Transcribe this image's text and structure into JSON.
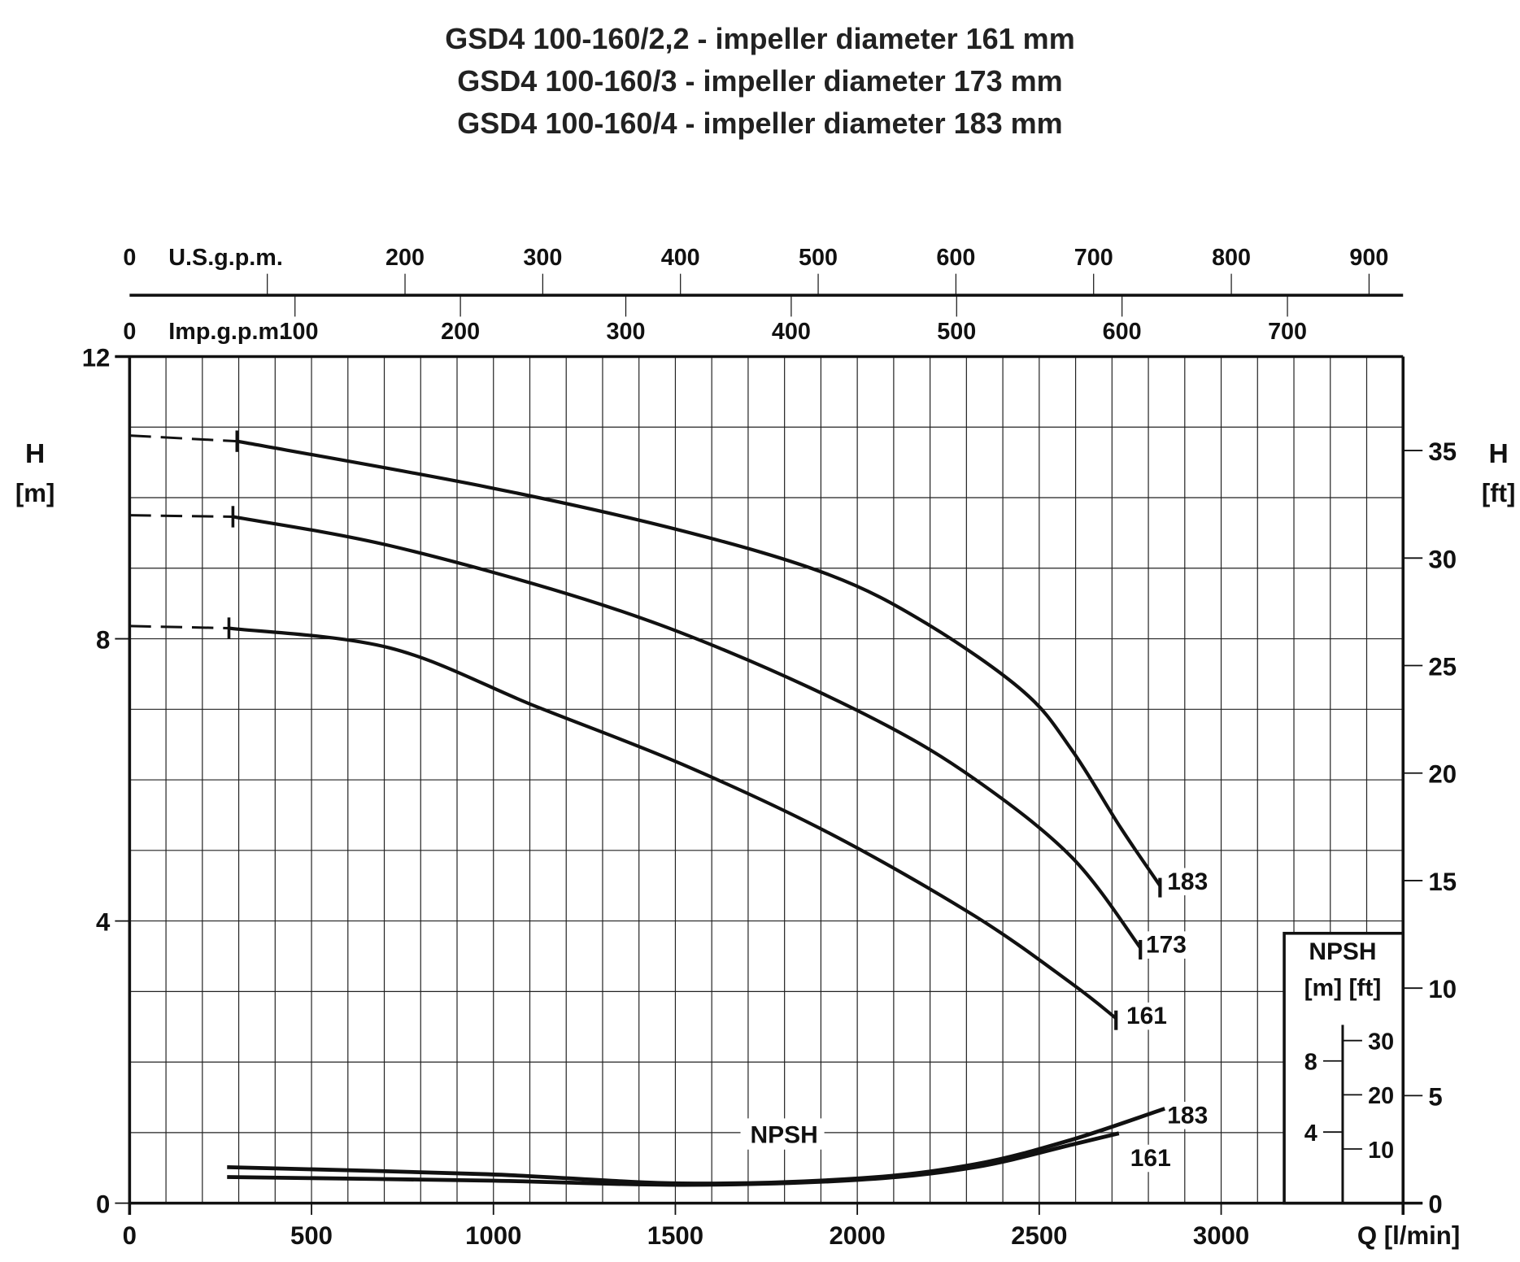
{
  "chart_data": {
    "type": "line",
    "title": [
      "GSD4 100-160/2,2 - impeller diameter 161 mm",
      "GSD4 100-160/3 - impeller diameter 173 mm",
      "GSD4 100-160/4 - impeller diameter 183 mm"
    ],
    "xlabel": "Q [l/min]",
    "xlim": [
      0,
      3500
    ],
    "xticks": [
      0,
      500,
      1000,
      1500,
      2000,
      2500,
      3000
    ],
    "ylabel_left": {
      "symbol": "H",
      "unit": "[m]"
    },
    "ylim": [
      0,
      12
    ],
    "yticks": [
      0,
      4,
      8,
      12
    ],
    "ylabel_right": {
      "symbol": "H",
      "unit": "[ft]"
    },
    "yticks_right_ft": [
      0,
      5,
      10,
      15,
      20,
      25,
      30,
      35
    ],
    "grid": true,
    "top_axes": [
      {
        "label": "U.S.g.p.m.",
        "lpm_per_unit": 3.785,
        "ticks": [
          0,
          100,
          200,
          300,
          400,
          500,
          600,
          700,
          800,
          900
        ]
      },
      {
        "label": "Imp.g.p.m.",
        "lpm_per_unit": 4.546,
        "ticks": [
          0,
          100,
          200,
          300,
          400,
          500,
          600,
          700
        ]
      }
    ],
    "series": [
      {
        "name": "183",
        "kind": "H",
        "dashed_to": 295,
        "x": [
          0,
          295,
          983,
          1519,
          1921,
          2189,
          2457,
          2590,
          2724,
          2832
        ],
        "y": [
          10.88,
          10.8,
          10.15,
          9.53,
          8.91,
          8.22,
          7.25,
          6.42,
          5.32,
          4.5
        ]
      },
      {
        "name": "173",
        "kind": "H",
        "dashed_to": 284,
        "x": [
          0,
          284,
          715,
          1251,
          1653,
          2055,
          2323,
          2590,
          2778
        ],
        "y": [
          9.75,
          9.73,
          9.32,
          8.56,
          7.8,
          6.84,
          6.01,
          4.9,
          3.62
        ]
      },
      {
        "name": "161",
        "kind": "H",
        "dashed_to": 273,
        "x": [
          0,
          273,
          715,
          1117,
          1519,
          1921,
          2323,
          2590,
          2711
        ],
        "y": [
          8.18,
          8.15,
          7.87,
          7.04,
          6.22,
          5.25,
          4.07,
          3.11,
          2.62
        ]
      },
      {
        "name": "183",
        "kind": "NPSH",
        "x": [
          268,
          983,
          1519,
          2001,
          2323,
          2590,
          2845
        ],
        "y": [
          0.51,
          0.41,
          0.28,
          0.35,
          0.55,
          0.9,
          1.34
        ]
      },
      {
        "name": "161",
        "kind": "NPSH",
        "x": [
          268,
          983,
          1519,
          2001,
          2323,
          2590,
          2719
        ],
        "y": [
          0.37,
          0.32,
          0.26,
          0.33,
          0.51,
          0.83,
          0.99
        ]
      }
    ],
    "annotations": {
      "npsh_curve_label": "NPSH"
    },
    "npsh_inset": {
      "title": "NPSH",
      "units": "[m] [ft]",
      "m_ticks": [
        4,
        8
      ],
      "ft_ticks": [
        10,
        20,
        30
      ]
    }
  }
}
